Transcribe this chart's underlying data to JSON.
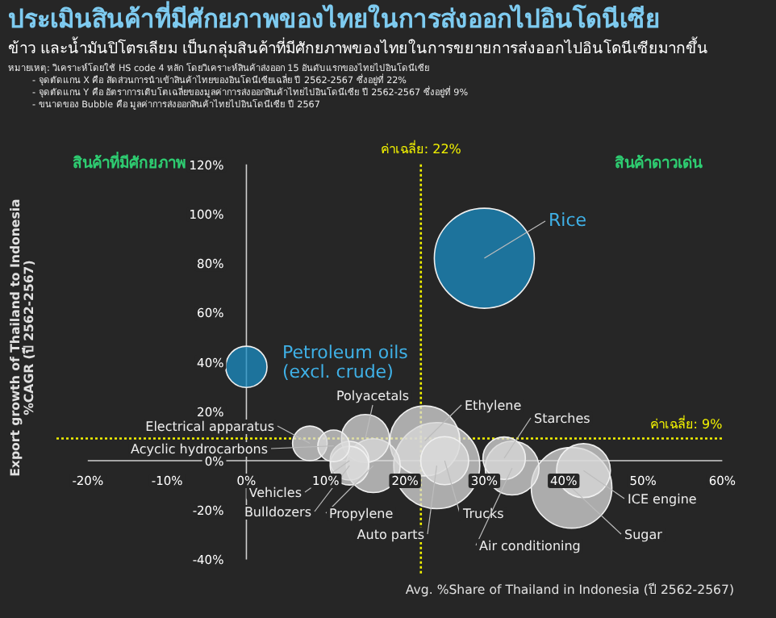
{
  "chart_data": {
    "type": "bubble",
    "title": "ประเมินสินค้าที่มีศักยภาพของไทยในการส่งออกไปอินโดนีเซีย",
    "subtitle": "ข้าว และน้ำมันปิโตรเลียม เป็นกลุ่มสินค้าที่มีศักยภาพของไทยในการขยายการส่งออกไปอินโดนีเซียมากขึ้น",
    "xlabel": "Avg. %Share of Thailand in Indonesia (ปี 2562-2567)",
    "ylabel": "Export growth of Thailand to Indonesia\n%CAGR (ปี 2562-2567)",
    "x": [
      0,
      30,
      8,
      11,
      13,
      13,
      15,
      16,
      22.5,
      24,
      25,
      32.5,
      33.5,
      41,
      42.5
    ],
    "values": [
      38,
      82,
      7,
      6,
      0,
      -2,
      9,
      -2,
      8,
      -2,
      0,
      1,
      -3,
      -11,
      -4
    ],
    "sizes": [
      0.17,
      1,
      0.12,
      0.1,
      0.15,
      0.15,
      0.23,
      0.29,
      0.49,
      0.74,
      0.23,
      0.18,
      0.29,
      0.65,
      0.29
    ],
    "colors": [
      "#1b8ec4",
      "#1b8ec4",
      "#d9d9d9",
      "#d9d9d9",
      "#d9d9d9",
      "#d9d9d9",
      "#d9d9d9",
      "#d9d9d9",
      "#d9d9d9",
      "#d9d9d9",
      "#d9d9d9",
      "#d9d9d9",
      "#d9d9d9",
      "#d9d9d9",
      "#d9d9d9"
    ],
    "xlim": [
      -20,
      60
    ],
    "ylim": [
      -40,
      120
    ],
    "xticks": [
      {
        "value": -20,
        "label": "-20%"
      },
      {
        "value": -10,
        "label": "-10%"
      },
      {
        "value": 0,
        "label": "0%"
      },
      {
        "value": 10,
        "label": "10%"
      },
      {
        "value": 20,
        "label": "20%"
      },
      {
        "value": 30,
        "label": "30%"
      },
      {
        "value": 40,
        "label": "40%"
      },
      {
        "value": 50,
        "label": "50%"
      },
      {
        "value": 60,
        "label": "60%"
      }
    ],
    "yticks": [
      {
        "value": -40,
        "label": "-40%"
      },
      {
        "value": -20,
        "label": "-20%"
      },
      {
        "value": 0,
        "label": "0%"
      },
      {
        "value": 20,
        "label": "20%"
      },
      {
        "value": 40,
        "label": "40%"
      },
      {
        "value": 60,
        "label": "60%"
      },
      {
        "value": 80,
        "label": "80%"
      },
      {
        "value": 100,
        "label": "100%"
      },
      {
        "value": 120,
        "label": "120%"
      }
    ],
    "ref_lines": [
      {
        "axis": "x",
        "value": 22,
        "label": "ค่าเฉลี่ย: 22%",
        "color": "#f2f200",
        "line_style": "dotted"
      },
      {
        "axis": "y",
        "value": 9,
        "label": "ค่าเฉลี่ย: 9%",
        "color": "#f2f200",
        "line_style": "dotted"
      }
    ],
    "annotations": [
      "สินค้าที่มีศักยภาพ",
      "สินค้าดาวเด่น",
      "หมายเหตุ: วิเคราะห์โดยใช้ HS code 4 หลัก โดยวิเคราะห์สินค้าส่งออก 15 อันดับแรกของไทยไปอินโดนีเซีย",
      "- จุดตัดแกน X คือ สัดส่วนการนำเข้าสินค้าไทยของอินโดนีเซียเฉลี่ย ปี 2562-2567 ซึ่งอยู่ที่ 22%",
      "- จุดตัดแกน Y คือ อัตราการเติบโตเฉลี่ยของมูลค่าการส่งออกสินค้าไทยไปอินโดนีเซีย ปี 2562-2567 ซึ่งอยู่ที่ 9%",
      "- ขนาดของ Bubble คือ มูลค่าการส่งออกสินค้าไทยไปอินโดนีเซีย ปี 2567",
      {
        "text": "Petroleum oils\n(excl. crude)",
        "x": 0,
        "y": 38
      },
      {
        "text": "Rice",
        "x": 30,
        "y": 82
      },
      {
        "text": "Electrical apparatus",
        "x": 8,
        "y": 7
      },
      {
        "text": "Acyclic hydrocarbons",
        "x": 11,
        "y": 6
      },
      {
        "text": "Vehicles",
        "x": 13,
        "y": 0
      },
      {
        "text": "Bulldozers",
        "x": 13,
        "y": -2
      },
      {
        "text": "Polyacetals",
        "x": 15,
        "y": 9
      },
      {
        "text": "Propylene",
        "x": 16,
        "y": -2
      },
      {
        "text": "Ethylene",
        "x": 22.5,
        "y": 8
      },
      {
        "text": "Auto parts",
        "x": 24,
        "y": -2
      },
      {
        "text": "Trucks",
        "x": 25,
        "y": 0
      },
      {
        "text": "Starches",
        "x": 32.5,
        "y": 1
      },
      {
        "text": "Air conditioning",
        "x": 33.5,
        "y": -3
      },
      {
        "text": "Sugar",
        "x": 41,
        "y": -11
      },
      {
        "text": "ICE engine",
        "x": 42.5,
        "y": -4
      }
    ]
  }
}
